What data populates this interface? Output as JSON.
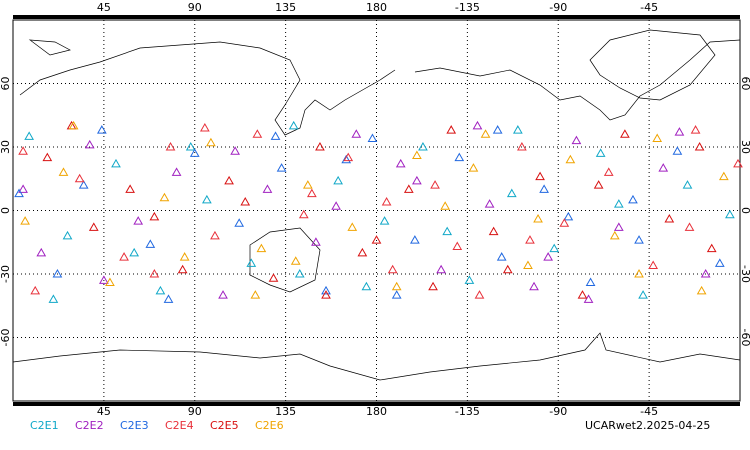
{
  "chart_data": {
    "type": "scatter",
    "xlim": [
      0,
      360
    ],
    "ylim": [
      -90,
      90
    ],
    "xticks": [
      45,
      90,
      135,
      180,
      {
        "value": 225,
        "label": "-135"
      },
      {
        "value": 270,
        "label": "-90"
      },
      {
        "value": 315,
        "label": "-45"
      }
    ],
    "yticks": [
      60,
      30,
      0,
      -30,
      -60
    ],
    "grid": true,
    "footer": "UCARwet2.2025-04-25",
    "series": [
      {
        "name": "C2E1",
        "color": "#10a8c8",
        "x": [
          8,
          27,
          51,
          73,
          96,
          118,
          139,
          161,
          184,
          203,
          226,
          247,
          268,
          291,
          312,
          334,
          355,
          142,
          60,
          250,
          20,
          175,
          300,
          88,
          215
        ],
        "y": [
          35,
          -12,
          22,
          -38,
          5,
          -25,
          40,
          14,
          -5,
          30,
          -33,
          8,
          -18,
          27,
          -40,
          12,
          -2,
          -30,
          -20,
          38,
          -42,
          -36,
          3,
          30,
          -10
        ]
      },
      {
        "name": "C2E2",
        "color": "#a020c0",
        "x": [
          14,
          38,
          62,
          81,
          104,
          126,
          150,
          170,
          192,
          212,
          236,
          258,
          279,
          300,
          322,
          343,
          5,
          110,
          230,
          285,
          45,
          160,
          330,
          200,
          265
        ],
        "y": [
          -20,
          31,
          -5,
          18,
          -40,
          10,
          -15,
          36,
          22,
          -28,
          3,
          -36,
          33,
          -8,
          20,
          -30,
          10,
          28,
          40,
          -42,
          -33,
          2,
          37,
          14,
          -22
        ]
      },
      {
        "name": "C2E3",
        "color": "#2068e0",
        "x": [
          3,
          22,
          44,
          68,
          90,
          112,
          133,
          155,
          178,
          199,
          221,
          242,
          263,
          286,
          307,
          329,
          350,
          77,
          190,
          240,
          130,
          35,
          310,
          275,
          165
        ],
        "y": [
          8,
          -30,
          38,
          -16,
          27,
          -6,
          20,
          -38,
          34,
          -14,
          25,
          -22,
          10,
          -34,
          5,
          28,
          -25,
          -42,
          -40,
          38,
          35,
          12,
          -14,
          -3,
          24
        ]
      },
      {
        "name": "C2E4",
        "color": "#e8303a",
        "x": [
          11,
          33,
          55,
          78,
          100,
          121,
          144,
          166,
          188,
          209,
          231,
          252,
          273,
          295,
          317,
          338,
          359,
          148,
          70,
          220,
          256,
          5,
          185,
          335,
          95
        ],
        "y": [
          -38,
          15,
          -22,
          30,
          -12,
          36,
          -2,
          25,
          -28,
          12,
          -40,
          30,
          -6,
          18,
          -26,
          38,
          22,
          8,
          -30,
          -17,
          -14,
          28,
          4,
          -8,
          39
        ]
      },
      {
        "name": "C2E5",
        "color": "#d81010",
        "x": [
          17,
          40,
          58,
          84,
          107,
          129,
          152,
          173,
          196,
          217,
          238,
          261,
          282,
          303,
          325,
          346,
          29,
          115,
          245,
          290,
          180,
          208,
          340,
          70,
          155
        ],
        "y": [
          25,
          -8,
          10,
          -28,
          14,
          -32,
          30,
          -20,
          10,
          38,
          -10,
          16,
          -40,
          36,
          -4,
          -18,
          40,
          4,
          -28,
          12,
          -14,
          -36,
          30,
          -3,
          -40
        ]
      },
      {
        "name": "C2E6",
        "color": "#f0a400",
        "x": [
          6,
          30,
          48,
          75,
          98,
          123,
          146,
          168,
          190,
          214,
          234,
          255,
          276,
          298,
          319,
          341,
          352,
          85,
          200,
          260,
          140,
          25,
          310,
          228,
          120
        ],
        "y": [
          -5,
          40,
          -34,
          6,
          32,
          -18,
          12,
          -8,
          -36,
          2,
          36,
          -26,
          24,
          -12,
          34,
          -38,
          16,
          -22,
          26,
          -4,
          -24,
          18,
          -30,
          20,
          -40
        ]
      }
    ]
  }
}
